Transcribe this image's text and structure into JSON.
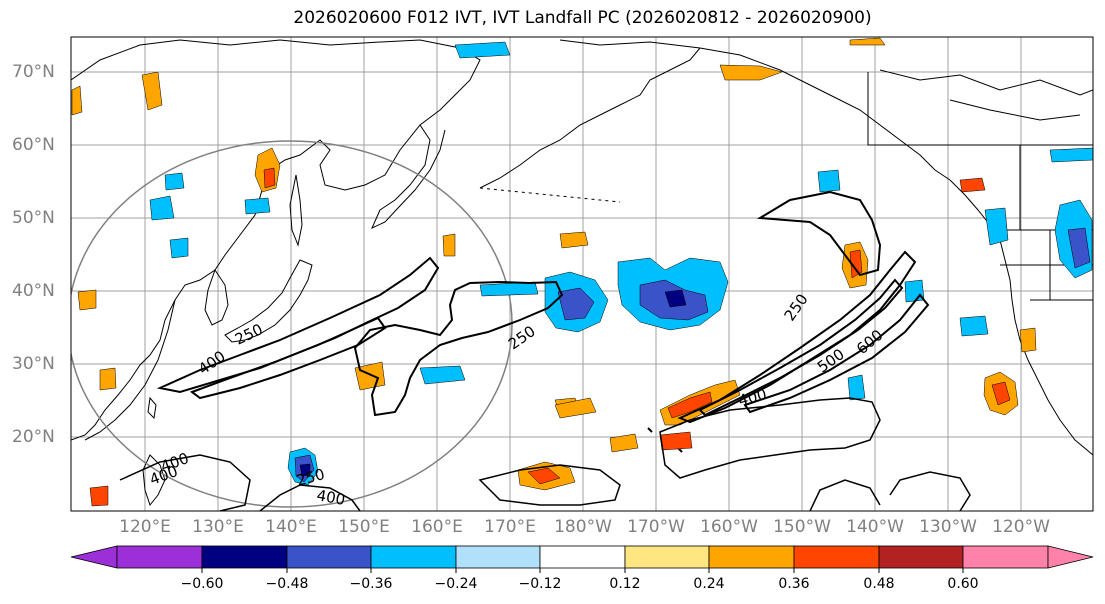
{
  "title": "2026020600 F012 IVT, IVT Landfall PC (2026020812 - 2026020900)",
  "map": {
    "lat_labels": [
      "70°N",
      "60°N",
      "50°N",
      "40°N",
      "30°N",
      "20°N"
    ],
    "lon_labels": [
      "120°E",
      "130°E",
      "140°E",
      "150°E",
      "160°E",
      "170°E",
      "180°W",
      "170°W",
      "160°W",
      "150°W",
      "140°W",
      "130°W",
      "120°W"
    ],
    "contour_labels": [
      "250",
      "400",
      "250",
      "400",
      "400",
      "250",
      "400",
      "400",
      "250",
      "500",
      "600"
    ],
    "colors": {
      "coast": "#000000",
      "grid": "#a0a0a0",
      "circle": "#808080",
      "contour": "#000000"
    }
  },
  "colorbar": {
    "ticks": [
      "−0.60",
      "−0.48",
      "−0.36",
      "−0.24",
      "−0.12",
      "0.12",
      "0.24",
      "0.36",
      "0.48",
      "0.60"
    ],
    "colors": [
      "#9b30d9",
      "#000080",
      "#3a53c8",
      "#00bfff",
      "#b0e0fa",
      "#ffffff",
      "#ffe680",
      "#ffa500",
      "#ff4500",
      "#b22222",
      "#ff82ab"
    ]
  }
}
